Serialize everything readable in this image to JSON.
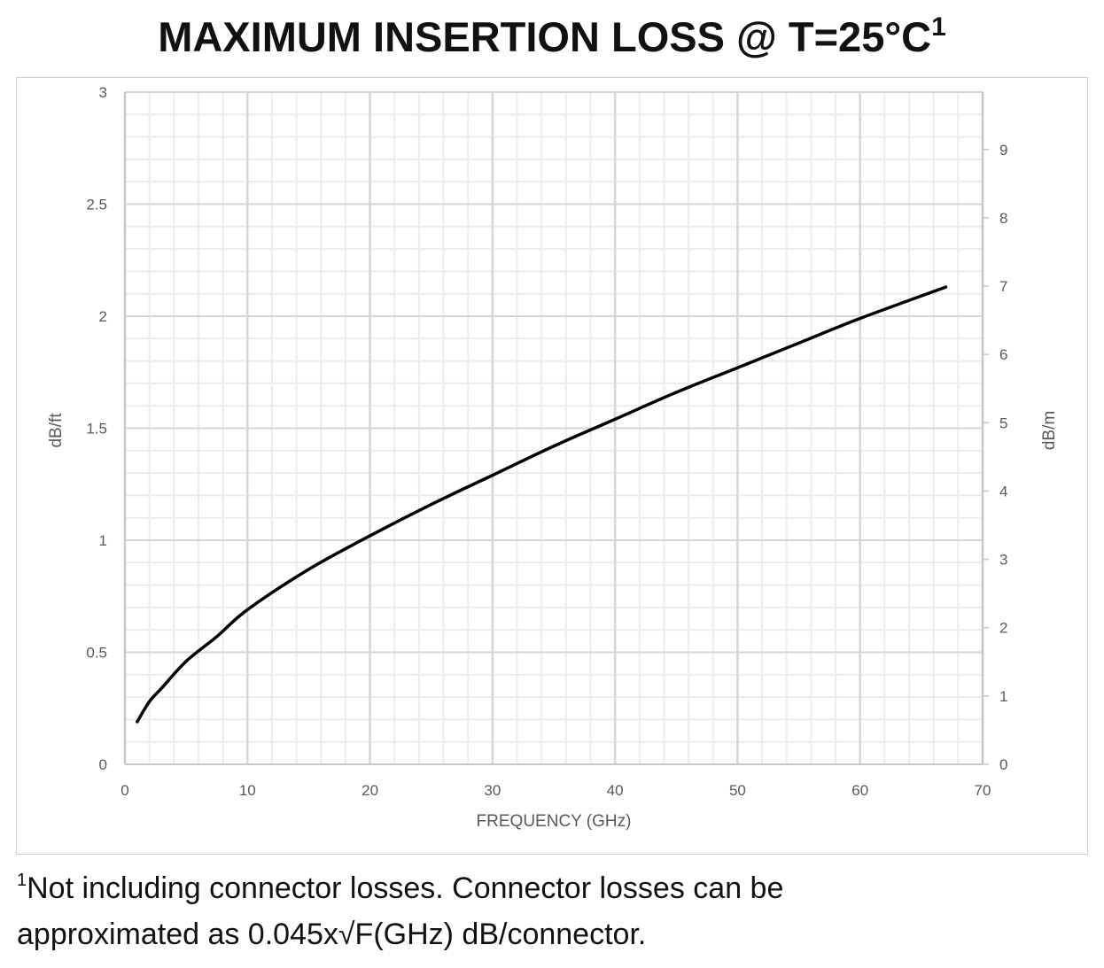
{
  "chart_data": {
    "type": "line",
    "title": "MAXIMUM INSERTION LOSS @ T=25°C",
    "title_superscript": "1",
    "xlabel": "FREQUENCY (GHz)",
    "ylabel": "dB/ft",
    "y2label": "dB/m",
    "xlim": [
      0,
      70
    ],
    "ylim": [
      0,
      3
    ],
    "y2lim": [
      0,
      9.84
    ],
    "xticks": [
      "0",
      "10",
      "20",
      "30",
      "40",
      "50",
      "60",
      "70"
    ],
    "yticks": [
      "0",
      "0.5",
      "1",
      "1.5",
      "2",
      "2.5",
      "3"
    ],
    "y2ticks": [
      "0",
      "1",
      "2",
      "3",
      "4",
      "5",
      "6",
      "7",
      "8",
      "9"
    ],
    "grid": true,
    "line_color": "#000000",
    "series": [
      {
        "x": [
          1,
          2,
          3,
          5,
          7.5,
          10,
          15,
          20,
          25,
          30,
          35,
          40,
          45,
          50,
          55,
          60,
          67
        ],
        "y": [
          0.19,
          0.28,
          0.34,
          0.46,
          0.57,
          0.69,
          0.87,
          1.02,
          1.16,
          1.29,
          1.42,
          1.54,
          1.66,
          1.77,
          1.88,
          1.99,
          2.13
        ]
      }
    ]
  },
  "footnote": {
    "marker": "1",
    "line1": "Not including connector losses.  Connector losses can be",
    "line2": "approximated as 0.045x√F(GHz) dB/connector."
  }
}
